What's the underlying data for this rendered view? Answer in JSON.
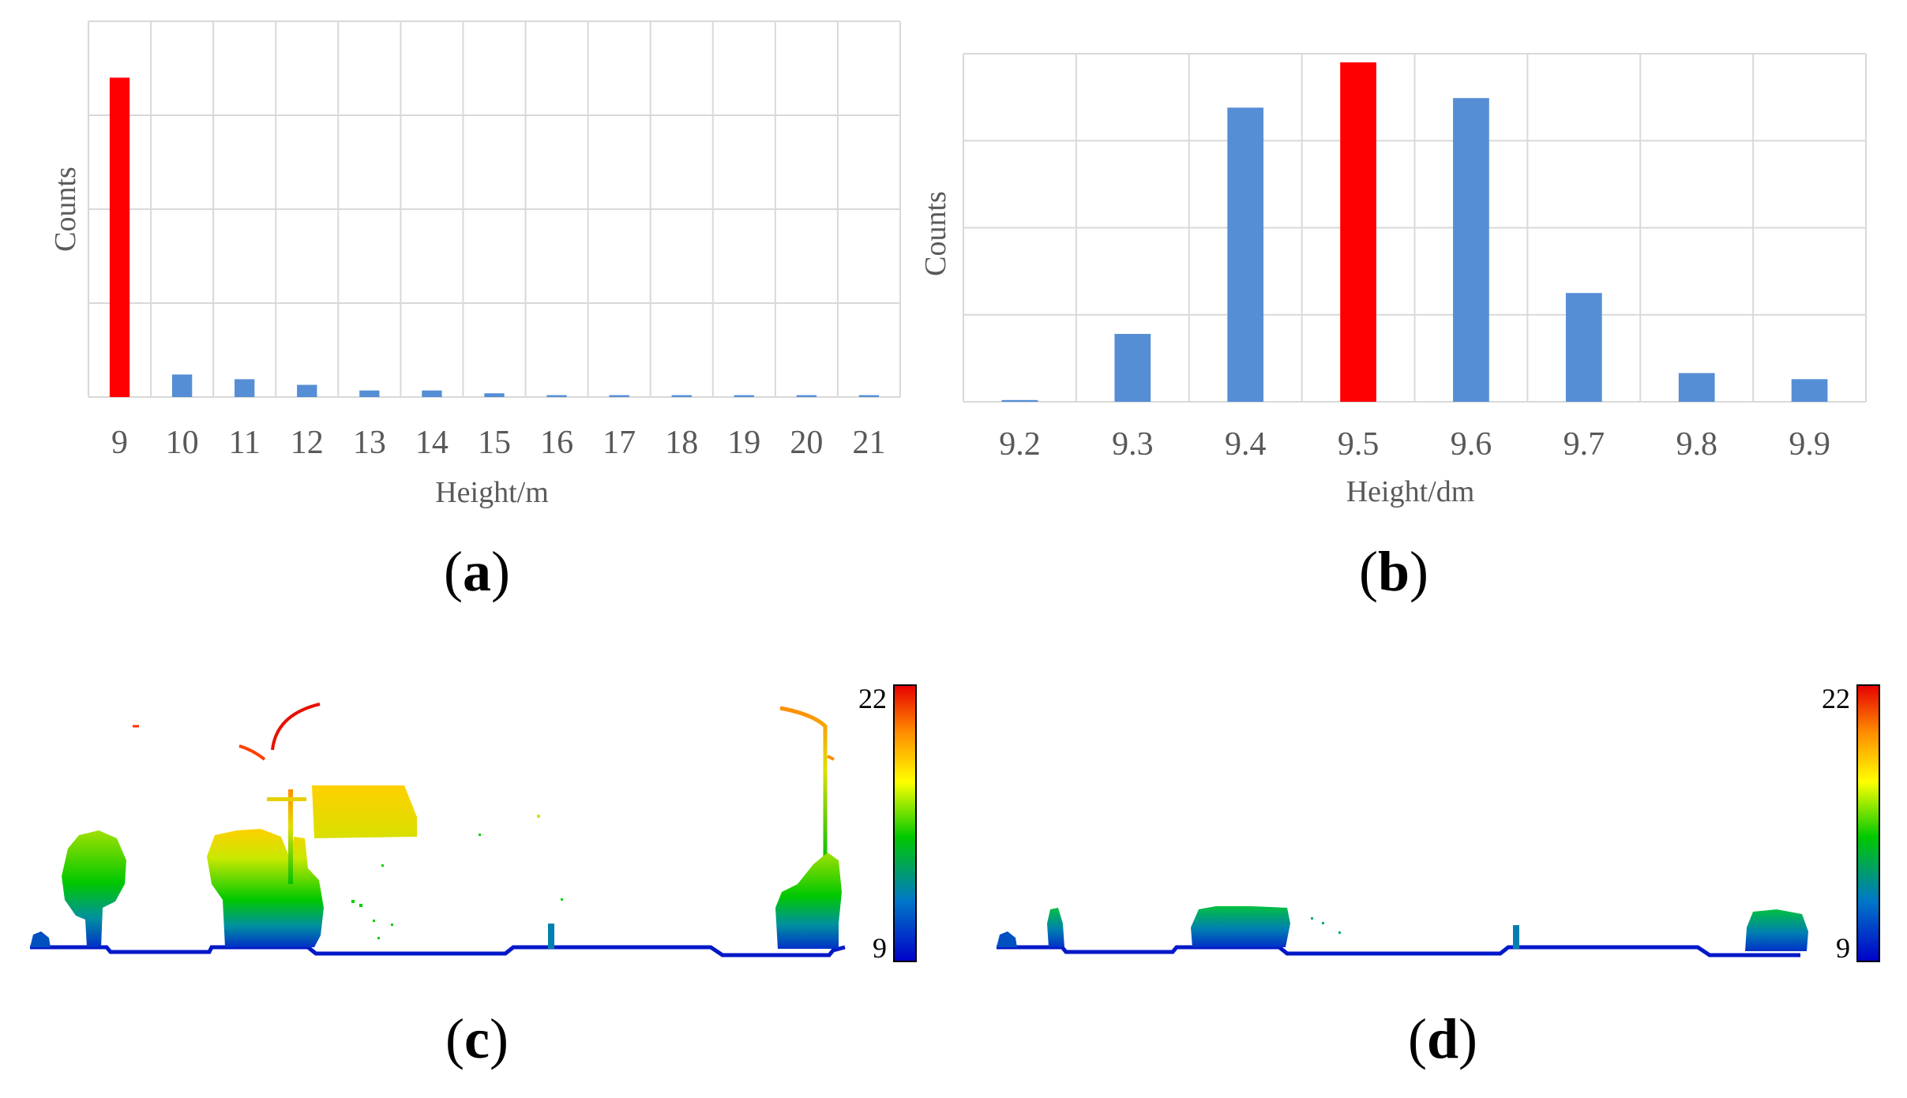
{
  "chart_data": [
    {
      "type": "bar",
      "panel": "a",
      "categories": [
        "9",
        "10",
        "11",
        "12",
        "13",
        "14",
        "15",
        "16",
        "17",
        "18",
        "19",
        "20",
        "21"
      ],
      "values": [
        340,
        24,
        19,
        13,
        7,
        7,
        4,
        2,
        2,
        2,
        2,
        2,
        2
      ],
      "highlight_index": 0,
      "ylim": [
        0,
        400
      ],
      "xlabel": "Height/m",
      "ylabel": "Counts",
      "grid": true
    },
    {
      "type": "bar",
      "panel": "b",
      "categories": [
        "9.2",
        "9.3",
        "9.4",
        "9.5",
        "9.6",
        "9.7",
        "9.8",
        "9.9"
      ],
      "values": [
        2,
        78,
        338,
        390,
        349,
        125,
        33,
        26
      ],
      "highlight_index": 3,
      "ylim": [
        0,
        400
      ],
      "xlabel": "Height/dm",
      "ylabel": "Counts",
      "grid": true
    }
  ],
  "panels": {
    "a": {
      "label": "a"
    },
    "b": {
      "label": "b"
    },
    "c": {
      "label": "c",
      "colorbar_max": "22",
      "colorbar_min": "9"
    },
    "d": {
      "label": "d",
      "colorbar_max": "22",
      "colorbar_min": "9"
    }
  },
  "colors": {
    "bar": "#558ed5",
    "highlight": "#ff0000",
    "grid": "#d9d9d9",
    "colormap": [
      "#0000c8",
      "#0078c8",
      "#00c800",
      "#ffff00",
      "#ff8c00",
      "#e60000"
    ]
  }
}
